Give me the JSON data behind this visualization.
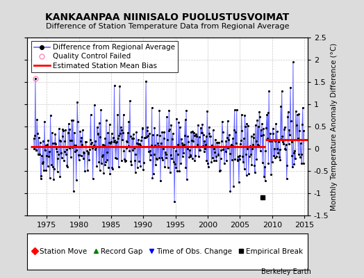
{
  "title": "KANKAANPAA NIINISALO PUOLUSTUSVOIMAT",
  "subtitle": "Difference of Station Temperature Data from Regional Average",
  "ylabel": "Monthly Temperature Anomaly Difference (°C)",
  "xlabel_years": [
    1975,
    1980,
    1985,
    1990,
    1995,
    2000,
    2005,
    2010,
    2015
  ],
  "yticks": [
    -1.5,
    -1,
    -0.5,
    0,
    0.5,
    1,
    1.5,
    2,
    2.5
  ],
  "ylim": [
    -1.5,
    2.5
  ],
  "xlim": [
    1972.0,
    2015.5
  ],
  "bias_before": 0.05,
  "bias_after": 0.2,
  "bias_break_year": 2009.0,
  "empirical_break_year": 2008.5,
  "empirical_break_value": -1.1,
  "qc_fail_year": 1973.25,
  "qc_fail_value": 1.58,
  "line_color": "#6666FF",
  "dot_color": "#000000",
  "bias_color": "#FF0000",
  "background_color": "#DCDCDC",
  "plot_bg_color": "#FFFFFF",
  "grid_color": "#BBBBBB",
  "title_fontsize": 10,
  "subtitle_fontsize": 8,
  "tick_fontsize": 8,
  "legend_fontsize": 7.5,
  "seed": 42
}
